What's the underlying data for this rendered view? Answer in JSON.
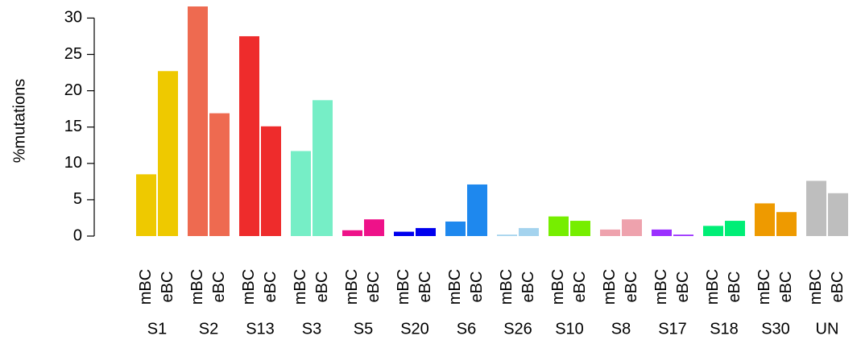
{
  "chart_data": {
    "type": "bar",
    "y_label": "%mutations",
    "categories": [
      "S1",
      "S2",
      "S13",
      "S3",
      "S5",
      "S20",
      "S6",
      "S26",
      "S10",
      "S8",
      "S17",
      "S18",
      "S30",
      "UN"
    ],
    "colors": [
      "#eec900",
      "#ee6a50",
      "#ee2c2c",
      "#76eec6",
      "#ee1289",
      "#0000ee",
      "#1e88ee",
      "#a4d3ee",
      "#76ee00",
      "#eea2ad",
      "#9b30ff",
      "#00ee76",
      "#ee9a00",
      "#bebebe"
    ],
    "series": [
      {
        "name": "mBC",
        "values": [
          8.5,
          31.6,
          27.5,
          11.7,
          0.8,
          0.6,
          2.0,
          0.2,
          2.7,
          0.9,
          0.9,
          1.4,
          4.5,
          7.6
        ]
      },
      {
        "name": "eBC",
        "values": [
          22.7,
          16.9,
          15.1,
          18.7,
          2.3,
          1.1,
          7.1,
          1.1,
          2.1,
          2.3,
          0.2,
          2.1,
          3.3,
          5.9
        ]
      }
    ],
    "ylim": [
      0,
      31.6
    ],
    "yticks": [
      0,
      5,
      10,
      15,
      20,
      25,
      30
    ]
  }
}
